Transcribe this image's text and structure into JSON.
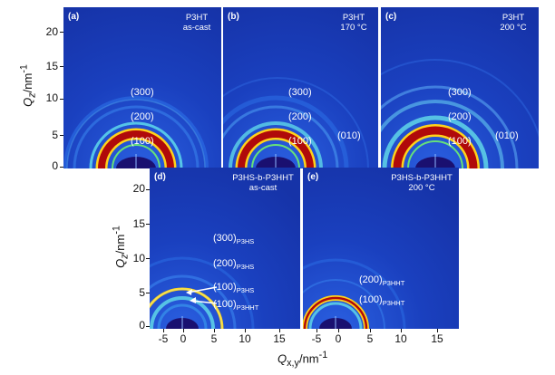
{
  "panels": [
    {
      "label": "(a)",
      "polymer": "P3HT",
      "condition": "as-cast",
      "reflections": [
        "(300)",
        "(200)",
        "(100)"
      ]
    },
    {
      "label": "(b)",
      "polymer": "P3HT",
      "condition": "170 °C",
      "reflections": [
        "(300)",
        "(200)",
        "(100)",
        "(010)"
      ]
    },
    {
      "label": "(c)",
      "polymer": "P3HT",
      "condition": "200 °C",
      "reflections": [
        "(300)",
        "(200)",
        "(100)",
        "(010)"
      ]
    },
    {
      "label": "(d)",
      "polymer": "P3HS-b-P3HHT",
      "condition": "as-cast",
      "reflections": [
        {
          "miller": "(300)",
          "sub": "P3HS"
        },
        {
          "miller": "(200)",
          "sub": "P3HS"
        },
        {
          "miller": "(100)",
          "sub": "P3HS"
        },
        {
          "miller": "(100)",
          "sub": "P3HHT"
        }
      ]
    },
    {
      "label": "(e)",
      "polymer": "P3HS-b-P3HHT",
      "condition": "200 °C",
      "reflections": [
        {
          "miller": "(200)",
          "sub": "P3HHT"
        },
        {
          "miller": "(100)",
          "sub": "P3HHT"
        }
      ]
    }
  ],
  "axes": {
    "y_title_main": "Q",
    "y_title_sub": "z",
    "y_title_unit": "/nm",
    "y_title_exp": "-1",
    "x_title_main": "Q",
    "x_title_sub": "x,y",
    "x_title_unit": "/nm",
    "x_title_exp": "-1",
    "y_ticks": [
      "20",
      "15",
      "10",
      "5",
      "0"
    ],
    "y_ticks_top": [
      "20",
      "15",
      "10",
      "5",
      "0"
    ],
    "x_ticks": [
      "-5",
      "0",
      "5",
      "10",
      "15"
    ],
    "x_ticks_e": [
      "-5",
      "0",
      "5",
      "10",
      "15"
    ]
  },
  "colors": {
    "background": "#1436b4",
    "ring_red": "#b00a0a",
    "ring_yellow": "#ffd21a",
    "ring_cyan": "#5fd6e8",
    "beamstop": "#1a1070"
  }
}
